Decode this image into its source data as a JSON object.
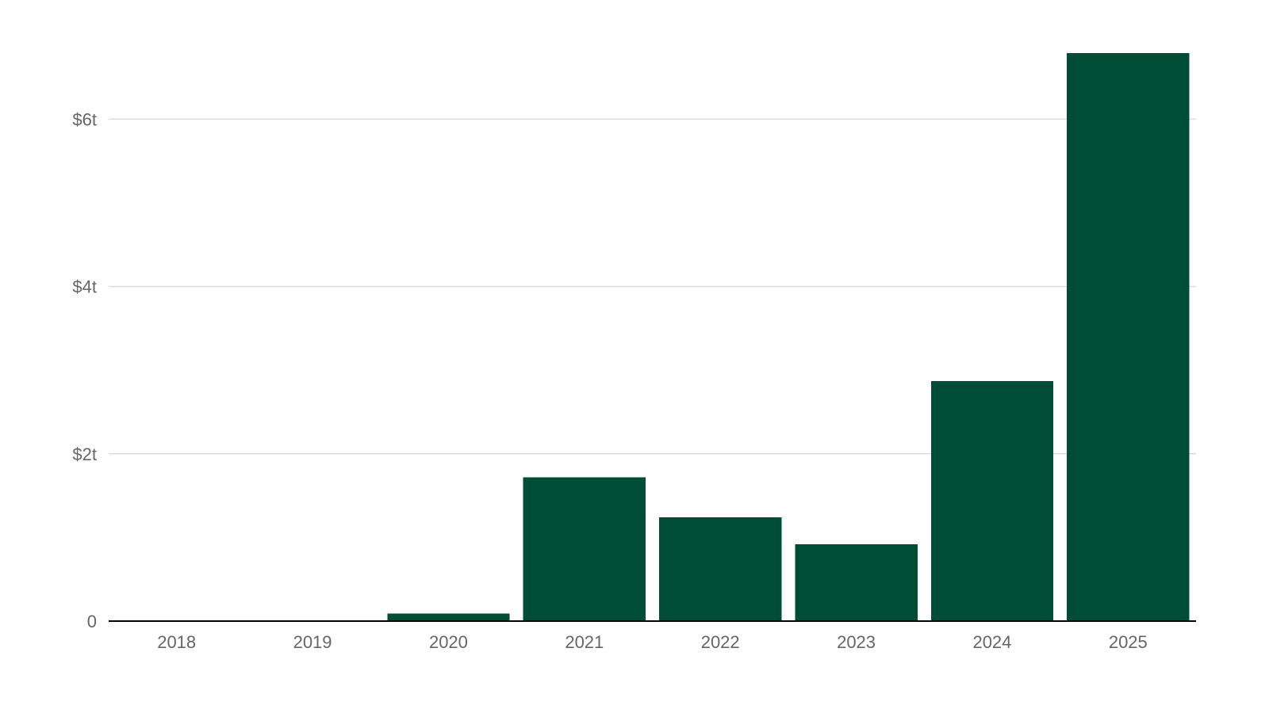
{
  "chart_data": {
    "type": "bar",
    "title": "",
    "xlabel": "",
    "ylabel": "",
    "categories": [
      "2018",
      "2019",
      "2020",
      "2021",
      "2022",
      "2023",
      "2024",
      "2025"
    ],
    "values": [
      0.01,
      0.01,
      0.09,
      1.72,
      1.24,
      0.92,
      2.87,
      6.79
    ],
    "y_ticks": [
      {
        "value": 0,
        "label": "0"
      },
      {
        "value": 2,
        "label": "$2t"
      },
      {
        "value": 4,
        "label": "$4t"
      },
      {
        "value": 6,
        "label": "$6t"
      }
    ],
    "ylim": [
      0,
      6.79
    ],
    "grid": true,
    "legend": "none",
    "bar_color": "#004d36"
  }
}
